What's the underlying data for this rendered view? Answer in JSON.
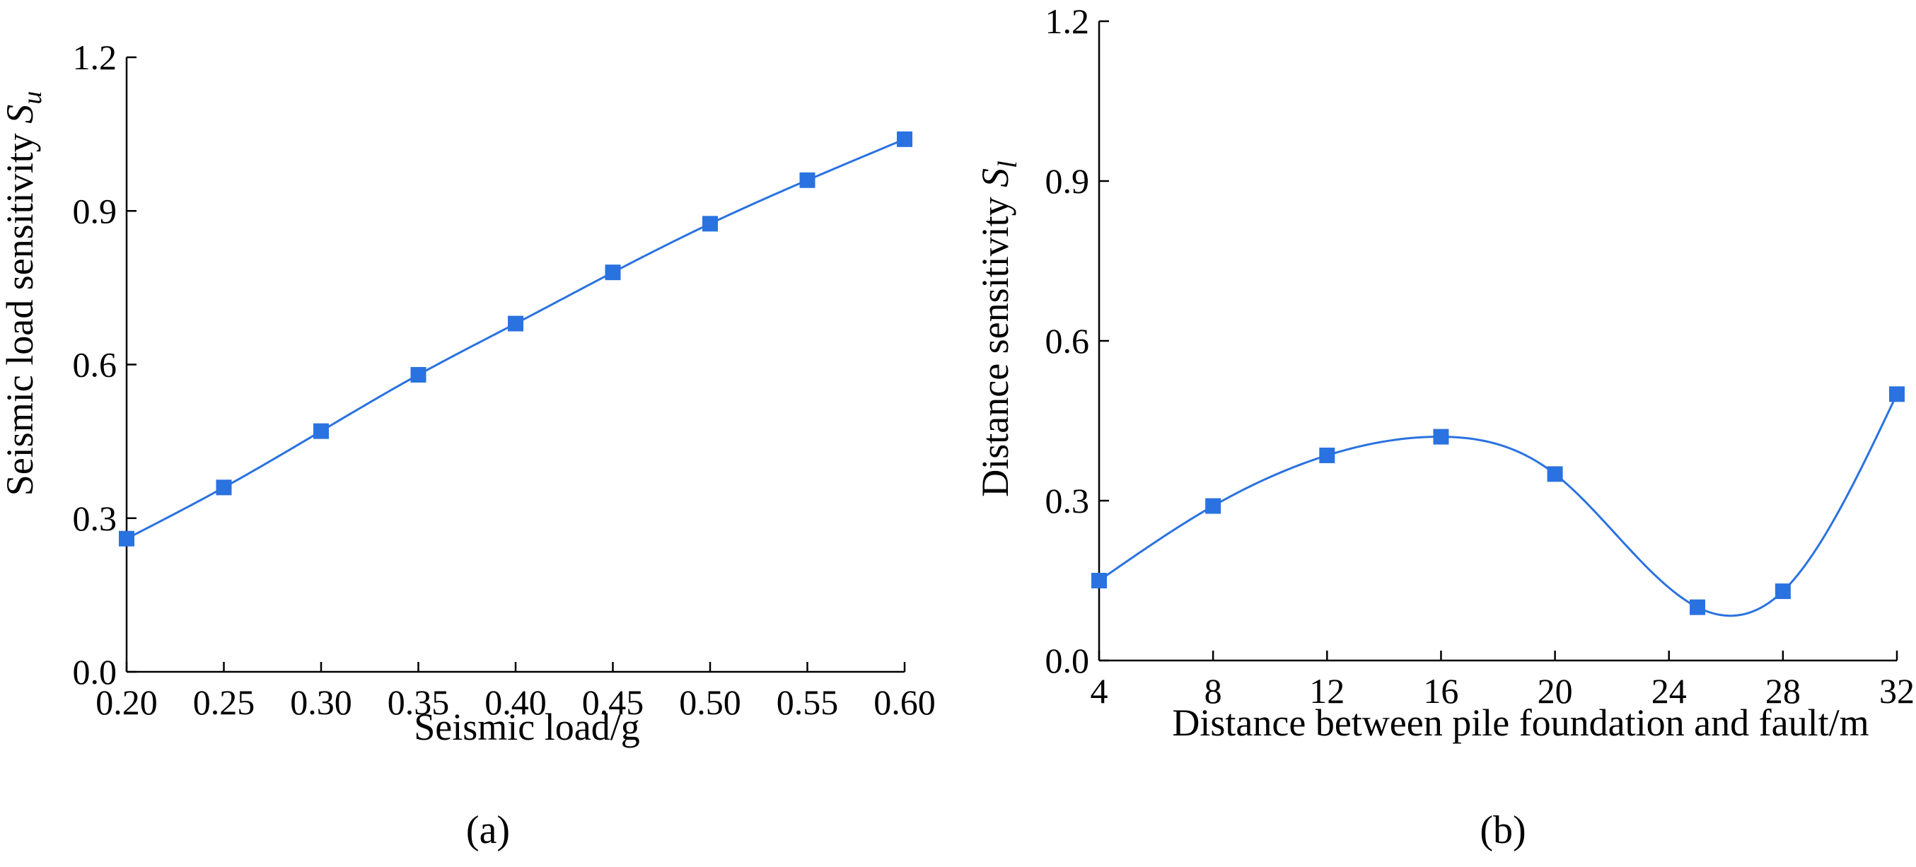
{
  "colors": {
    "series": "#2a72e0",
    "axis": "#000000"
  },
  "chart_data": [
    {
      "type": "line",
      "panel_label": "(a)",
      "xlabel": "Seismic load/g",
      "ylabel_main": "Seismic load sensitivity ",
      "ylabel_symbol": "S",
      "ylabel_subscript": "u",
      "xlim": [
        0.2,
        0.6
      ],
      "ylim": [
        0.0,
        1.2
      ],
      "xticks": [
        0.2,
        0.25,
        0.3,
        0.35,
        0.4,
        0.45,
        0.5,
        0.55,
        0.6
      ],
      "xtick_labels": [
        "0.20",
        "0.25",
        "0.30",
        "0.35",
        "0.40",
        "0.45",
        "0.50",
        "0.55",
        "0.60"
      ],
      "yticks": [
        0.0,
        0.3,
        0.6,
        0.9,
        1.2
      ],
      "ytick_labels": [
        "0.0",
        "0.3",
        "0.6",
        "0.9",
        "1.2"
      ],
      "marker": "square",
      "grid": false,
      "series": [
        {
          "x": [
            0.2,
            0.25,
            0.3,
            0.35,
            0.4,
            0.45,
            0.5,
            0.55,
            0.6
          ],
          "y": [
            0.26,
            0.36,
            0.47,
            0.58,
            0.68,
            0.78,
            0.875,
            0.96,
            1.04
          ]
        }
      ]
    },
    {
      "type": "line",
      "panel_label": "(b)",
      "xlabel": "Distance between pile foundation and fault/m",
      "ylabel_main": "Distance sensitivity ",
      "ylabel_symbol": "S",
      "ylabel_subscript": "l",
      "xlim": [
        4,
        32
      ],
      "ylim": [
        0.0,
        1.2
      ],
      "xticks": [
        4,
        8,
        12,
        16,
        20,
        24,
        28,
        32
      ],
      "xtick_labels": [
        "4",
        "8",
        "12",
        "16",
        "20",
        "24",
        "28",
        "32"
      ],
      "yticks": [
        0.0,
        0.3,
        0.6,
        0.9,
        1.2
      ],
      "ytick_labels": [
        "0.0",
        "0.3",
        "0.6",
        "0.9",
        "1.2"
      ],
      "marker": "square",
      "grid": false,
      "series": [
        {
          "x": [
            4,
            8,
            12,
            16,
            20,
            25,
            28,
            32
          ],
          "y": [
            0.15,
            0.29,
            0.385,
            0.42,
            0.35,
            0.1,
            0.13,
            0.5
          ]
        }
      ]
    }
  ]
}
